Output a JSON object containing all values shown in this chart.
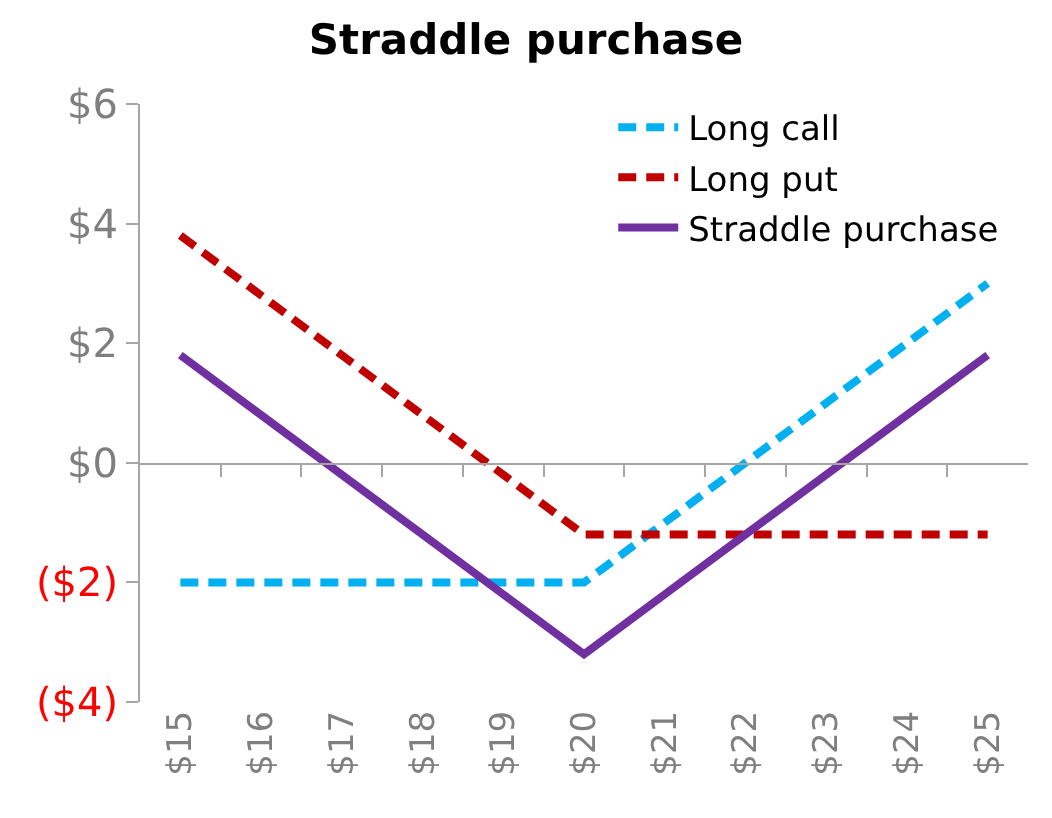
{
  "chart_data": {
    "type": "line",
    "title": "Straddle purchase",
    "categories": [
      "$15",
      "$16",
      "$17",
      "$18",
      "$19",
      "$20",
      "$21",
      "$22",
      "$23",
      "$24",
      "$25"
    ],
    "series": [
      {
        "name": "Long call",
        "color": "#00b0f0",
        "line_style": "dashed",
        "values": [
          -2,
          -2,
          -2,
          -2,
          -2,
          -2,
          -1,
          0,
          1,
          2,
          3
        ]
      },
      {
        "name": "Long put",
        "color": "#c00000",
        "line_style": "dashed",
        "values": [
          3.8,
          2.8,
          1.8,
          0.8,
          -0.2,
          -1.2,
          -1.2,
          -1.2,
          -1.2,
          -1.2,
          -1.2
        ]
      },
      {
        "name": "Straddle purchase",
        "color": "#7030a0",
        "line_style": "solid",
        "values": [
          1.8,
          0.8,
          -0.2,
          -1.2,
          -2.2,
          -3.2,
          -2.2,
          -1.2,
          -0.2,
          0.8,
          1.8
        ]
      }
    ],
    "ylim": [
      -4,
      6
    ],
    "yticks": [
      {
        "value": -4,
        "label": "($4)"
      },
      {
        "value": -2,
        "label": "($2)"
      },
      {
        "value": 0,
        "label": "$0"
      },
      {
        "value": 2,
        "label": "$2"
      },
      {
        "value": 4,
        "label": "$4"
      },
      {
        "value": 6,
        "label": "$6"
      }
    ],
    "legend": "top right",
    "marker": "none"
  }
}
